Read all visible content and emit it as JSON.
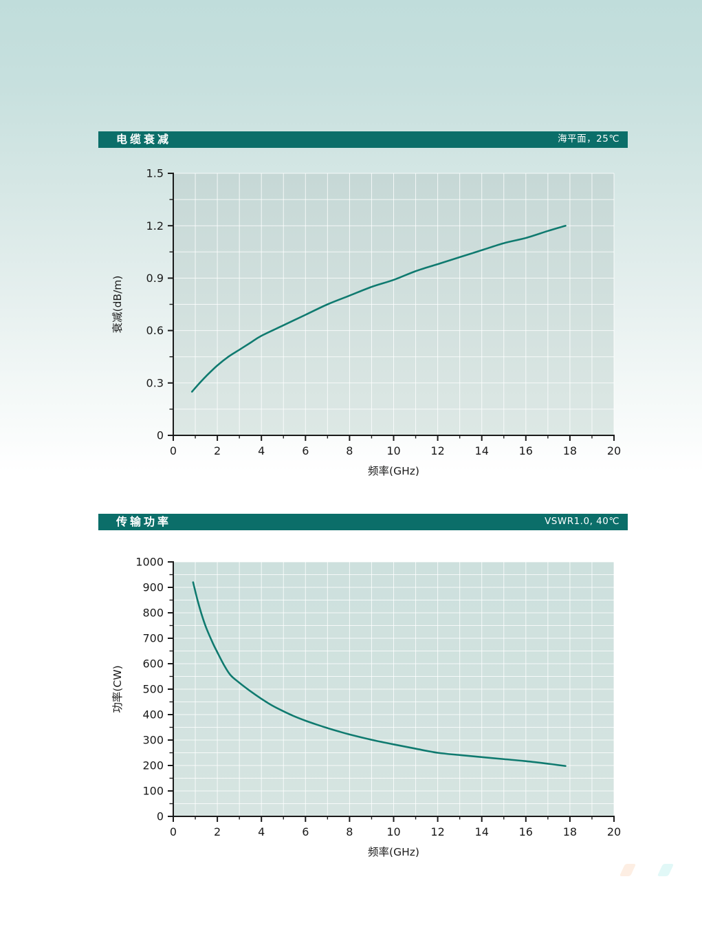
{
  "colors": {
    "header_bar": "#0b6e69",
    "header_text": "#ffffff",
    "curve": "#0f7a6f",
    "plot_bg1_top": "#c6d8d6",
    "plot_bg1_bottom": "#dde8e5",
    "plot_bg2_top": "#cde0dd",
    "plot_bg2_bottom": "#d6e4e1",
    "grid": "#ffffff",
    "axis": "#1a1a1a",
    "tick_text": "#1a1a1a"
  },
  "chart_data": [
    {
      "type": "line",
      "title": "电缆衰减",
      "condition": "海平面，25℃",
      "xlabel": "频率(GHz)",
      "ylabel": "衰减(dB/m)",
      "xlim": [
        0,
        20
      ],
      "ylim": [
        0,
        1.5
      ],
      "x_tick_labels": [
        "0",
        "2",
        "4",
        "6",
        "8",
        "10",
        "12",
        "14",
        "16",
        "18",
        "20"
      ],
      "x_major_step": 2,
      "x_minor_step": 1,
      "y_tick_labels": [
        "0",
        "0.3",
        "0.6",
        "0.9",
        "1.2",
        "1.5"
      ],
      "y_major_step": 0.3,
      "y_minor_step": 0.15,
      "grid": true,
      "legend": "none",
      "series": [
        {
          "name": "电缆衰减",
          "points": [
            [
              0.85,
              0.25
            ],
            [
              1.2,
              0.3
            ],
            [
              1.5,
              0.34
            ],
            [
              2,
              0.4
            ],
            [
              2.5,
              0.45
            ],
            [
              3,
              0.49
            ],
            [
              3.5,
              0.53
            ],
            [
              4,
              0.57
            ],
            [
              5,
              0.63
            ],
            [
              6,
              0.69
            ],
            [
              7,
              0.75
            ],
            [
              8,
              0.8
            ],
            [
              9,
              0.85
            ],
            [
              10,
              0.89
            ],
            [
              11,
              0.94
            ],
            [
              12,
              0.98
            ],
            [
              13,
              1.02
            ],
            [
              14,
              1.06
            ],
            [
              15,
              1.1
            ],
            [
              16,
              1.13
            ],
            [
              17,
              1.17
            ],
            [
              17.8,
              1.2
            ]
          ]
        }
      ]
    },
    {
      "type": "line",
      "title": "传输功率",
      "condition": "VSWR1.0, 40℃",
      "xlabel": "频率(GHz)",
      "ylabel": "功率(CW)",
      "xlim": [
        0,
        20
      ],
      "ylim": [
        0,
        1000
      ],
      "x_tick_labels": [
        "0",
        "2",
        "4",
        "6",
        "8",
        "10",
        "12",
        "14",
        "16",
        "18",
        "20"
      ],
      "x_major_step": 2,
      "x_minor_step": 1,
      "y_tick_labels": [
        "0",
        "100",
        "200",
        "300",
        "400",
        "500",
        "600",
        "700",
        "800",
        "900",
        "1000"
      ],
      "y_major_step": 100,
      "y_minor_step": 50,
      "grid": true,
      "legend": "none",
      "series": [
        {
          "name": "传输功率",
          "points": [
            [
              0.9,
              920
            ],
            [
              1.1,
              850
            ],
            [
              1.3,
              790
            ],
            [
              1.5,
              740
            ],
            [
              1.8,
              680
            ],
            [
              2,
              645
            ],
            [
              2.3,
              595
            ],
            [
              2.6,
              555
            ],
            [
              3,
              525
            ],
            [
              3.5,
              492
            ],
            [
              4,
              462
            ],
            [
              4.5,
              435
            ],
            [
              5,
              413
            ],
            [
              5.5,
              393
            ],
            [
              6,
              376
            ],
            [
              6.5,
              361
            ],
            [
              7,
              347
            ],
            [
              7.5,
              334
            ],
            [
              8,
              322
            ],
            [
              9,
              301
            ],
            [
              10,
              283
            ],
            [
              11,
              266
            ],
            [
              12,
              250
            ],
            [
              13,
              241
            ],
            [
              14,
              233
            ],
            [
              15,
              225
            ],
            [
              16,
              217
            ],
            [
              17,
              207
            ],
            [
              17.8,
              198
            ]
          ]
        }
      ]
    }
  ]
}
